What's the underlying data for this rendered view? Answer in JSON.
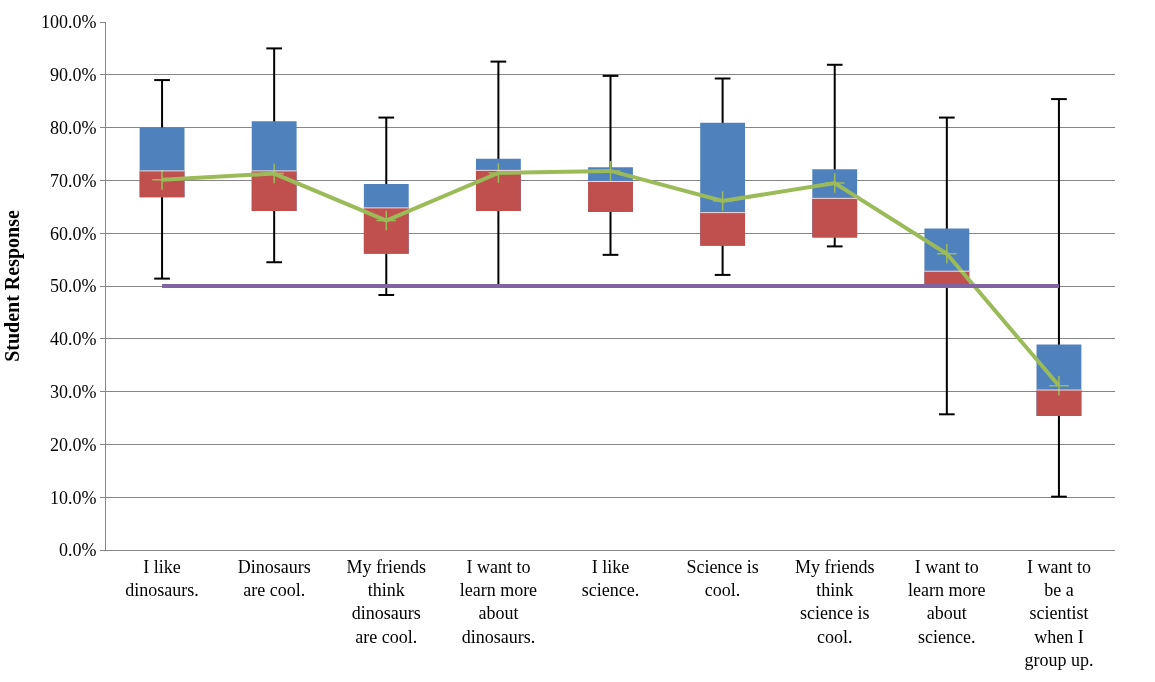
{
  "chart_data": {
    "type": "box",
    "ylabel": "Student Response",
    "categories": [
      "I like dinosaurs.",
      "Dinosaurs are cool.",
      "My friends think dinosaurs are cool.",
      "I want to learn more about dinosaurs.",
      "I like science.",
      "Science is cool.",
      "My friends think science is cool.",
      "I want to learn more about science.",
      "I want to be a scientist when I group up."
    ],
    "series": [
      {
        "color": "#4f81bd",
        "boxes": [
          {
            "low": 51.4,
            "q1": 66.8,
            "median": 71.8,
            "q3": 80.0,
            "high": 89.0
          },
          {
            "low": 54.5,
            "q1": 64.2,
            "median": 71.8,
            "q3": 81.2,
            "high": 95.0
          },
          {
            "low": 48.3,
            "q1": 56.1,
            "median": 64.8,
            "q3": 69.3,
            "high": 81.9
          },
          {
            "low": 50.0,
            "q1": 64.2,
            "median": 71.9,
            "q3": 74.1,
            "high": 92.5
          },
          {
            "low": 55.9,
            "q1": 64.0,
            "median": 69.8,
            "q3": 72.5,
            "high": 89.8
          },
          {
            "low": 52.1,
            "q1": 57.6,
            "median": 63.9,
            "q3": 80.9,
            "high": 89.3
          },
          {
            "low": 57.5,
            "q1": 59.2,
            "median": 66.6,
            "q3": 72.1,
            "high": 91.9
          },
          {
            "low": 25.7,
            "q1": 50.2,
            "median": 52.8,
            "q3": 60.9,
            "high": 81.9
          },
          {
            "low": 10.1,
            "q1": 25.4,
            "median": 30.3,
            "q3": 38.9,
            "high": 85.4
          }
        ]
      },
      {
        "type": "bar",
        "color": "#c0504d",
        "base": [
          66.8,
          64.2,
          56.1,
          64.2,
          64.0,
          57.6,
          59.2,
          50.2,
          25.4
        ],
        "values": [
          5.0,
          7.6,
          8.7,
          7.7,
          5.8,
          6.3,
          7.4,
          2.6,
          4.9
        ]
      },
      {
        "type": "line",
        "color": "#9bbb59",
        "marker": "cross",
        "values": [
          70.1,
          71.3,
          62.4,
          71.4,
          71.8,
          66.1,
          69.5,
          56.1,
          31.1
        ]
      }
    ],
    "ref_lines": [
      {
        "axis": "y",
        "value": 50,
        "color": "#8064a2"
      }
    ],
    "ylim": [
      0,
      100
    ],
    "yticks": [
      {
        "value": 0,
        "label": "0.0%"
      },
      {
        "value": 10,
        "label": "10.0%"
      },
      {
        "value": 20,
        "label": "20.0%"
      },
      {
        "value": 30,
        "label": "30.0%"
      },
      {
        "value": 40,
        "label": "40.0%"
      },
      {
        "value": 50,
        "label": "50.0%"
      },
      {
        "value": 60,
        "label": "60.0%"
      },
      {
        "value": 70,
        "label": "70.0%"
      },
      {
        "value": 80,
        "label": "80.0%"
      },
      {
        "value": 90,
        "label": "90.0%"
      },
      {
        "value": 100,
        "label": "100.0%"
      }
    ],
    "grid": "y"
  }
}
